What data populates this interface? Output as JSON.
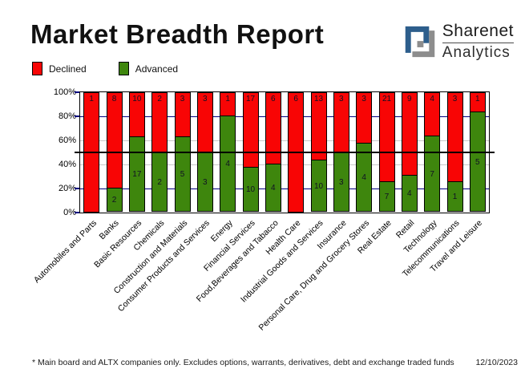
{
  "header": {
    "title": "Market Breadth Report",
    "logo": {
      "line1": "Sharenet",
      "line2": "Analytics",
      "mark_blue": "#2d5e8c",
      "mark_gray": "#8d8d8d"
    }
  },
  "legend": {
    "declined_label": "Declined",
    "advanced_label": "Advanced"
  },
  "colors": {
    "declined_red": "#f80505",
    "advanced_green": "#3e860d",
    "gridline_navy": "#000080",
    "gridline_gray": "#c8c8c8",
    "reference_black": "#000000"
  },
  "chart_data": {
    "type": "bar",
    "stacked": true,
    "stack_mode": "percent",
    "title": "Market Breadth Report",
    "categories": [
      "Automobiles and Parts",
      "Banks",
      "Basic Resources",
      "Chemicals",
      "Construction and Materials",
      "Consumer Products and Services",
      "Energy",
      "Financial Services",
      "Food,Beverages and Tabacco",
      "Health Care",
      "Industrial Goods and Services",
      "Insurance",
      "Personal Care, Drug and Grocery Stores",
      "Real Estate",
      "Retail",
      "Technology",
      "Telecommunications",
      "Travel and Leisure"
    ],
    "series": [
      {
        "name": "Declined",
        "color": "#f80505",
        "values": [
          1,
          8,
          10,
          2,
          3,
          3,
          1,
          17,
          6,
          6,
          13,
          3,
          3,
          21,
          9,
          4,
          3,
          1
        ]
      },
      {
        "name": "Advanced",
        "color": "#3e860d",
        "values": [
          0,
          2,
          17,
          2,
          5,
          3,
          4,
          10,
          4,
          0,
          10,
          3,
          4,
          7,
          4,
          7,
          1,
          5
        ]
      }
    ],
    "yticks": [
      "0%",
      "20%",
      "40%",
      "60%",
      "80%",
      "100%"
    ],
    "ylim": [
      0,
      100
    ],
    "gridlines_navy_at": [
      20,
      80
    ],
    "gridlines_gray_at": [
      40,
      60
    ],
    "reference_line_at": 50,
    "legend_position": "top-left"
  },
  "footer": {
    "note": "* Main board and ALTX companies only. Excludes options, warrants, derivatives, debt and exchange traded funds",
    "date": "12/10/2023"
  }
}
